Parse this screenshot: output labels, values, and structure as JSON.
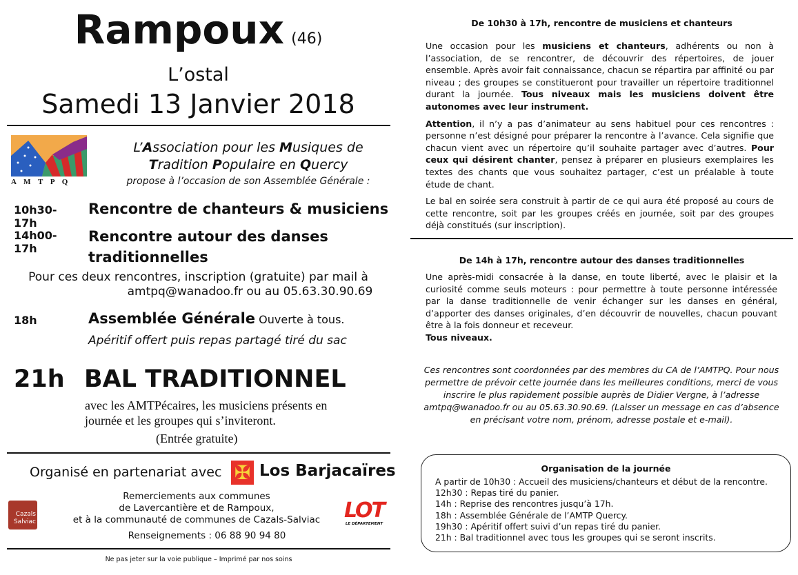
{
  "header": {
    "title": "Rampoux",
    "dept": "(46)",
    "venue": "L’ostal",
    "date": "Samedi 13 Janvier 2018"
  },
  "association": {
    "logo_letters": "A M T P Q",
    "name_line1_parts": [
      "L’",
      "A",
      "ssociation pour les ",
      "M",
      "usiques de"
    ],
    "name_line2_parts": [
      "T",
      "radition ",
      "P",
      "opulaire en ",
      "Q",
      "uercy"
    ],
    "intro": "propose à l’occasion de son Assemblée Générale :"
  },
  "program": [
    {
      "time": "10h30-17h",
      "title": "Rencontre de chanteurs & musiciens"
    },
    {
      "time": "14h00-17h",
      "title": "Rencontre autour des danses traditionnelles"
    }
  ],
  "registration": {
    "line1": "Pour ces deux rencontres, inscription (gratuite) par mail à",
    "line2": "amtpq@wanadoo.fr ou au 05.63.30.90.69"
  },
  "ag": {
    "time": "18h",
    "title": "Assemblée Générale",
    "note": "Ouverte à tous.",
    "aperitif": "Apéritif offert puis repas partagé tiré du sac"
  },
  "bal": {
    "time": "21h",
    "title": "BAL TRADITIONNEL",
    "line1": "avec les AMTPécaires, les musiciens présents en",
    "line2": "journée et les groupes qui s’inviteront.",
    "line3": "(Entrée gratuite)"
  },
  "partners": {
    "organised": "Organisé en partenariat avec",
    "barjac": "Los Barjacaïres",
    "thanks": [
      "Remerciements aux communes",
      "de Lavercantière et de Rampoux,",
      "et à la communauté de communes de Cazals-Salviac"
    ],
    "info": "Renseignements : 06 88 90 94 80",
    "cazals_logo": [
      "Cazals",
      "Salviac"
    ],
    "lot_logo": "LOT",
    "lot_sub": "LE DÉPARTEMENT"
  },
  "footer": "Ne pas jeter sur la voie publique – Imprimé par nos soins",
  "right": {
    "s1_heading": "De 10h30 à 17h, rencontre de musiciens et chanteurs",
    "s1_p1": [
      "Une occasion pour les ",
      "musiciens et chanteurs",
      ", adhérents ou non à l’association, de se rencontrer, de découvrir des répertoires, de jouer ensemble. Après avoir fait connaissance, chacun se répartira par affinité ou par niveau ; des groupes se constitueront pour travailler un répertoire traditionnel durant la journée. ",
      "Tous niveaux mais les musiciens doivent être autonomes avec leur instrument."
    ],
    "s1_p2": [
      "Attention",
      ", il n’y a pas d’animateur au sens habituel pour ces rencontres : personne n’est désigné pour préparer la rencontre à l’avance. Cela signifie que chacun vient avec un répertoire qu’il souhaite partager avec d’autres. ",
      "Pour ceux qui désirent chanter",
      ", pensez à préparer en plusieurs exemplaires les textes des chants que vous souhaitez partager, c’est un préalable à toute étude de chant."
    ],
    "s1_p3": "Le bal en soirée sera construit à partir de ce qui aura été proposé au cours de cette rencontre, soit par les groupes créés en journée, soit par des groupes déjà constitués (sur inscription).",
    "s2_heading": "De 14h à 17h, rencontre autour des danses traditionnelles",
    "s2_p1": "Une après-midi consacrée à la danse, en toute liberté, avec le plaisir et la curiosité comme seuls moteurs : pour permettre à toute personne intéressée par la danse traditionnelle de venir échanger sur les danses en général, d’apporter des danses originales, d’en découvrir de nouvelles, chacun pouvant être à la fois donneur et receveur.",
    "s2_p2": "Tous niveaux.",
    "coord": "Ces rencontres sont coordonnées par des membres du CA de l’AMTPQ. Pour nous permettre de prévoir cette journée dans les meilleures conditions, merci de vous inscrire le plus rapidement possible auprès de Didier Vergne, à l’adresse amtpq@wanadoo.fr ou au 05.63.30.90.69. (Laisser un message en cas d’absence en précisant votre nom, prénom, adresse postale et e-mail).",
    "schedule_title": "Organisation de la journée",
    "schedule": [
      "A partir de 10h30 : Accueil des musiciens/chanteurs et début de la rencontre.",
      "12h30 : Repas tiré du panier.",
      "14h : Reprise des rencontres jusqu’à 17h.",
      "18h : Assemblée Générale de l’AMTP Quercy.",
      "19h30 : Apéritif offert suivi d’un repas tiré du panier.",
      "21h : Bal traditionnel avec tous les groupes qui se seront inscrits."
    ]
  },
  "colors": {
    "text": "#111111",
    "barjac_red": "#e8322a",
    "cazals": "#a8382b",
    "lot_red": "#e3261f"
  }
}
